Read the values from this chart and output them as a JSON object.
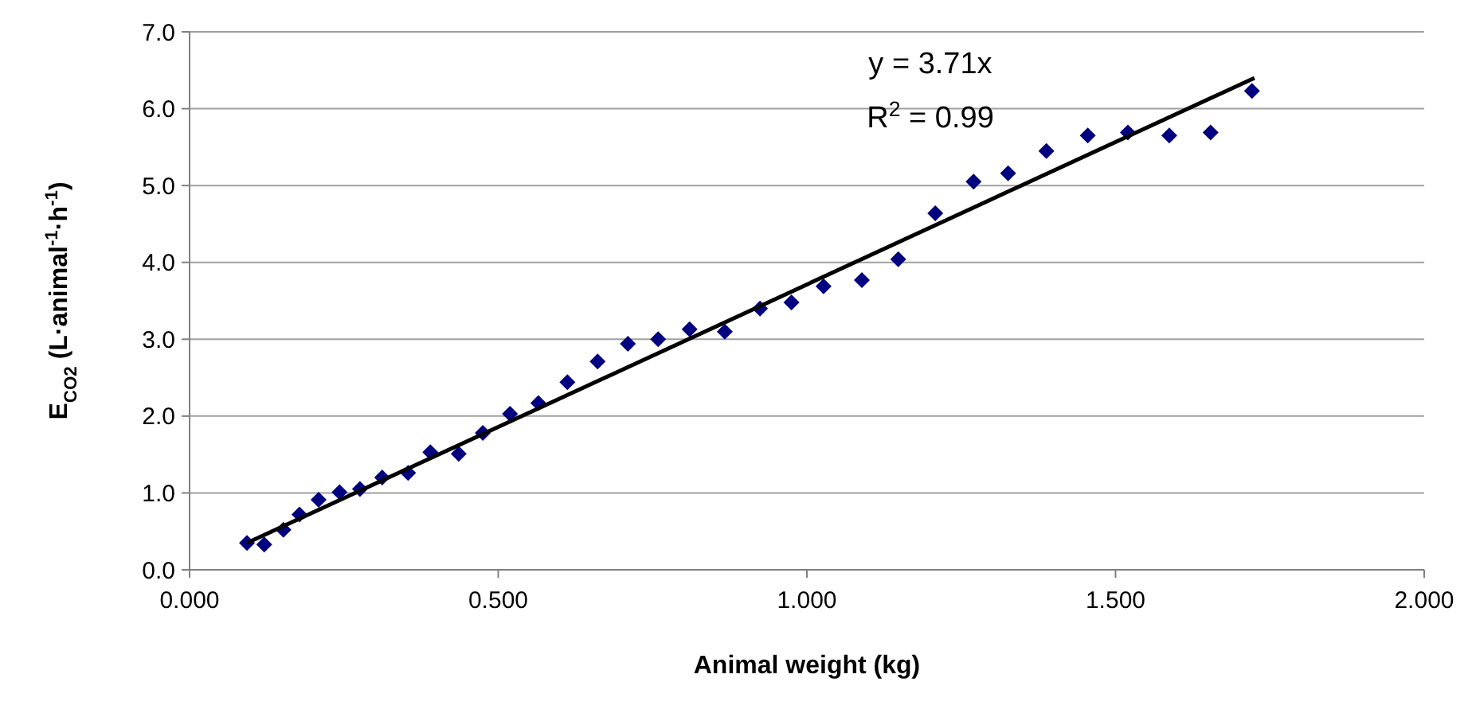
{
  "chart_data": {
    "type": "scatter",
    "xlabel": "Animal weight (kg)",
    "ylabel": "E$_{CO2}$ (L·animal$^{-1}$·h$^{-1}$)",
    "annotations": [
      "y = 3.71x",
      "R$^{2}$ = 0.99"
    ],
    "xlim": [
      0,
      2
    ],
    "xticks": [
      {
        "value": 0,
        "label": "0.000"
      },
      {
        "value": 0.5,
        "label": "0.500"
      },
      {
        "value": 1,
        "label": "1.000"
      },
      {
        "value": 1.5,
        "label": "1.500"
      },
      {
        "value": 2,
        "label": "2.000"
      }
    ],
    "ylim": [
      0,
      7
    ],
    "yticks": [
      {
        "value": 0,
        "label": "0.0"
      },
      {
        "value": 1,
        "label": "1.0"
      },
      {
        "value": 2,
        "label": "2.0"
      },
      {
        "value": 3,
        "label": "3.0"
      },
      {
        "value": 4,
        "label": "4.0"
      },
      {
        "value": 5,
        "label": "5.0"
      },
      {
        "value": 6,
        "label": "6.0"
      },
      {
        "value": 7,
        "label": "7.0"
      }
    ],
    "grid": "y",
    "marker": "diamond",
    "series": [
      {
        "color": "#000080",
        "x": [
          0.093,
          0.121,
          0.152,
          0.178,
          0.209,
          0.243,
          0.276,
          0.312,
          0.354,
          0.39,
          0.436,
          0.475,
          0.519,
          0.565,
          0.612,
          0.661,
          0.71,
          0.759,
          0.81,
          0.867,
          0.924,
          0.975,
          1.027,
          1.089,
          1.148,
          1.208,
          1.27,
          1.326,
          1.388,
          1.455,
          1.52,
          1.587,
          1.654,
          1.721
        ],
        "values": [
          0.35,
          0.33,
          0.52,
          0.72,
          0.91,
          1.01,
          1.05,
          1.2,
          1.26,
          1.53,
          1.51,
          1.78,
          2.03,
          2.17,
          2.44,
          2.71,
          2.94,
          3.0,
          3.13,
          3.1,
          3.4,
          3.48,
          3.69,
          3.77,
          4.04,
          4.64,
          5.05,
          5.16,
          5.45,
          5.65,
          5.69,
          5.65,
          5.69,
          6.23
        ]
      },
      {
        "type": "line",
        "color": "#000000",
        "marker": "none",
        "x": [
          0.093,
          1.725
        ],
        "values": [
          0.35,
          6.4
        ]
      }
    ]
  }
}
